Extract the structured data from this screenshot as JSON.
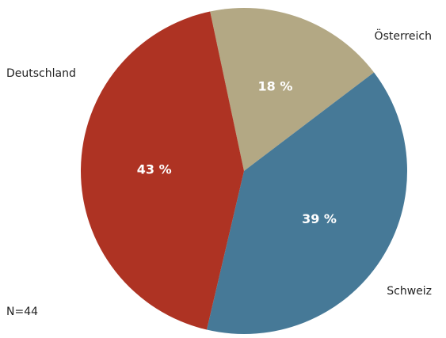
{
  "chart_data": {
    "type": "pie",
    "slices": [
      {
        "label": "Österreich",
        "value": 18,
        "value_label": "18 %",
        "color": "#b3a884"
      },
      {
        "label": "Schweiz",
        "value": 39,
        "value_label": "39 %",
        "color": "#467997"
      },
      {
        "label": "Deutschland",
        "value": 43,
        "value_label": "43 %",
        "color": "#ae3323"
      }
    ],
    "start_angle_deg": -12,
    "direction": "clockwise",
    "note": "N=44"
  }
}
